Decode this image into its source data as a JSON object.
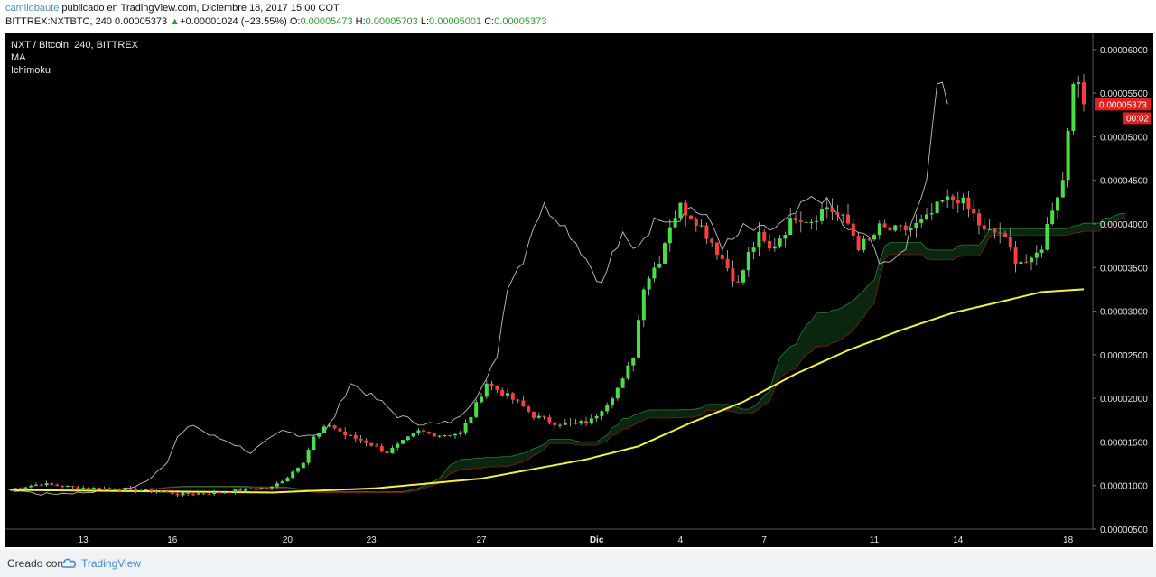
{
  "header": {
    "author": "camilobaute",
    "published": " publicado en TradingView.com, Diciembre 18, 2017 15:00 COT",
    "symbol": "BITTREX:NXTBTC, 240",
    "last": "0.00005373",
    "change": "+0.00001024 (+23.55%)",
    "o_label": "O:",
    "o": "0.00005473",
    "h_label": "H:",
    "h": "0.00005703",
    "l_label": "L:",
    "l": "0.00005001",
    "c_label": "C:",
    "c": "0.00005373"
  },
  "legend": {
    "title": "NXT / Bitcoin, 240, BITTREX",
    "ind1": "MA",
    "ind2": "Ichimoku"
  },
  "price_label": "0.00005373",
  "countdown": "00:02",
  "footer": {
    "created": "Creado con",
    "brand": "TradingView"
  },
  "colors": {
    "up": "#46e046",
    "down": "#ff3b3b",
    "ma": "#f2f23a",
    "lagging": "#bfbfbf",
    "cloud": "#0b2a10",
    "background": "#000000"
  },
  "chart_data": {
    "type": "candlestick",
    "title": "NXT / Bitcoin, 240, BITTREX",
    "ylim": [
      5e-06,
      6.05e-05
    ],
    "y_ticks": [
      "0.00006000",
      "0.00005500",
      "0.00005000",
      "0.00004500",
      "0.00004000",
      "0.00003500",
      "0.00003000",
      "0.00002500",
      "0.00002000",
      "0.00001500",
      "0.00001000",
      "0.00000500"
    ],
    "x_ticks": [
      "13",
      "16",
      "20",
      "23",
      "27",
      "Dic",
      "4",
      "7",
      "11",
      "14",
      "18"
    ],
    "x_tick_bar": [
      14,
      31,
      53,
      69,
      90,
      112,
      128,
      144,
      165,
      181,
      202
    ],
    "ma_key_points": [
      [
        0,
        9.5e-06
      ],
      [
        50,
        9.2e-06
      ],
      [
        70,
        9.7e-06
      ],
      [
        90,
        1.08e-05
      ],
      [
        110,
        1.3e-05
      ],
      [
        120,
        1.45e-05
      ],
      [
        130,
        1.72e-05
      ],
      [
        140,
        1.96e-05
      ],
      [
        150,
        2.28e-05
      ],
      [
        160,
        2.55e-05
      ],
      [
        170,
        2.78e-05
      ],
      [
        180,
        2.98e-05
      ],
      [
        190,
        3.12e-05
      ],
      [
        197,
        3.22e-05
      ],
      [
        205,
        3.25e-05
      ]
    ],
    "close_key_points": [
      [
        0,
        9.6e-06
      ],
      [
        6,
        1.02e-05
      ],
      [
        12,
        9.8e-06
      ],
      [
        20,
        9.6e-06
      ],
      [
        28,
        9.4e-06
      ],
      [
        32,
        9e-06
      ],
      [
        40,
        9.2e-06
      ],
      [
        46,
        9.6e-06
      ],
      [
        50,
        9.8e-06
      ],
      [
        53,
        1.1e-05
      ],
      [
        56,
        1.28e-05
      ],
      [
        58,
        1.55e-05
      ],
      [
        61,
        1.7e-05
      ],
      [
        64,
        1.58e-05
      ],
      [
        68,
        1.5e-05
      ],
      [
        72,
        1.38e-05
      ],
      [
        75,
        1.5e-05
      ],
      [
        78,
        1.62e-05
      ],
      [
        82,
        1.58e-05
      ],
      [
        86,
        1.6e-05
      ],
      [
        88,
        1.8e-05
      ],
      [
        91,
        2.18e-05
      ],
      [
        93,
        2.1e-05
      ],
      [
        97,
        1.95e-05
      ],
      [
        100,
        1.8e-05
      ],
      [
        104,
        1.72e-05
      ],
      [
        108,
        1.7e-05
      ],
      [
        111,
        1.75e-05
      ],
      [
        114,
        1.95e-05
      ],
      [
        117,
        2.2e-05
      ],
      [
        119,
        2.5e-05
      ],
      [
        121,
        3.3e-05
      ],
      [
        124,
        3.6e-05
      ],
      [
        126,
        4e-05
      ],
      [
        128,
        4.2e-05
      ],
      [
        131,
        4.05e-05
      ],
      [
        134,
        3.8e-05
      ],
      [
        137,
        3.5e-05
      ],
      [
        139,
        3.3e-05
      ],
      [
        141,
        3.65e-05
      ],
      [
        143,
        3.85e-05
      ],
      [
        145,
        3.7e-05
      ],
      [
        147,
        3.85e-05
      ],
      [
        150,
        4.1e-05
      ],
      [
        153,
        4.05e-05
      ],
      [
        156,
        4.2e-05
      ],
      [
        160,
        4e-05
      ],
      [
        162,
        3.75e-05
      ],
      [
        164,
        3.8e-05
      ],
      [
        166,
        3.95e-05
      ],
      [
        169,
        3.92e-05
      ],
      [
        172,
        3.95e-05
      ],
      [
        175,
        4.05e-05
      ],
      [
        178,
        4.25e-05
      ],
      [
        181,
        4.3e-05
      ],
      [
        184,
        4.1e-05
      ],
      [
        186,
        3.9e-05
      ],
      [
        189,
        3.9e-05
      ],
      [
        192,
        3.6e-05
      ],
      [
        195,
        3.55e-05
      ],
      [
        197,
        3.75e-05
      ],
      [
        199,
        4.2e-05
      ],
      [
        201,
        4.5e-05
      ],
      [
        203,
        5.7e-05
      ],
      [
        205,
        5.37e-05
      ]
    ],
    "series": [
      {
        "name": "MA",
        "type": "line"
      },
      {
        "name": "Ichimoku",
        "type": "cloud"
      }
    ]
  }
}
